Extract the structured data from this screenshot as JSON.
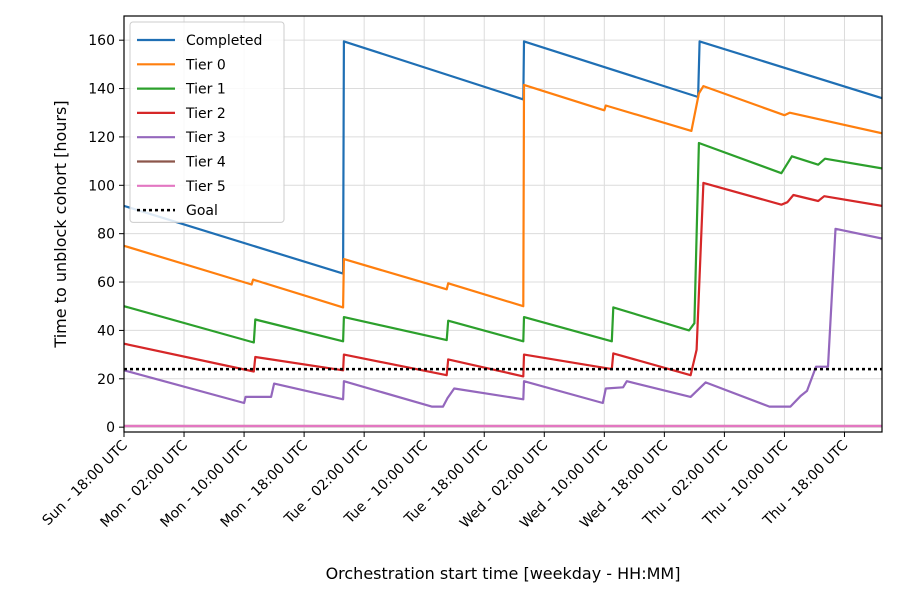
{
  "chart_data": {
    "type": "line",
    "xlabel": "Orchestration start time [weekday - HH:MM]",
    "ylabel": "Time to unblock cohort [hours]",
    "xlim": [
      0,
      101
    ],
    "ylim": [
      -2,
      170
    ],
    "grid": true,
    "legend_placement": "top-left",
    "x_unit": "hours after Sun - 18:00 UTC",
    "x_ticks": [
      {
        "x": 0,
        "label": "Sun - 18:00 UTC"
      },
      {
        "x": 8,
        "label": "Mon - 02:00 UTC"
      },
      {
        "x": 16,
        "label": "Mon - 10:00 UTC"
      },
      {
        "x": 24,
        "label": "Mon - 18:00 UTC"
      },
      {
        "x": 32,
        "label": "Tue - 02:00 UTC"
      },
      {
        "x": 40,
        "label": "Tue - 10:00 UTC"
      },
      {
        "x": 48,
        "label": "Tue - 18:00 UTC"
      },
      {
        "x": 56,
        "label": "Wed - 02:00 UTC"
      },
      {
        "x": 64,
        "label": "Wed - 10:00 UTC"
      },
      {
        "x": 72,
        "label": "Wed - 18:00 UTC"
      },
      {
        "x": 80,
        "label": "Thu - 02:00 UTC"
      },
      {
        "x": 88,
        "label": "Thu - 10:00 UTC"
      },
      {
        "x": 96,
        "label": "Thu - 18:00 UTC"
      }
    ],
    "y_ticks": [
      0,
      20,
      40,
      60,
      80,
      100,
      120,
      140,
      160
    ],
    "series": [
      {
        "name": "Completed",
        "color": "#1f6fb4",
        "points": [
          [
            0,
            91.5
          ],
          [
            29.2,
            63.5
          ],
          [
            29.3,
            159.5
          ],
          [
            53.2,
            135.5
          ],
          [
            53.3,
            159.5
          ],
          [
            76.5,
            136.5
          ],
          [
            76.7,
            159.5
          ],
          [
            101,
            136
          ]
        ]
      },
      {
        "name": "Tier 0",
        "color": "#ff7f0e",
        "points": [
          [
            0,
            75
          ],
          [
            17,
            59
          ],
          [
            17.2,
            61
          ],
          [
            29.2,
            49.5
          ],
          [
            29.3,
            69.5
          ],
          [
            43,
            57
          ],
          [
            43.2,
            59.5
          ],
          [
            53.2,
            50
          ],
          [
            53.3,
            141.5
          ],
          [
            64,
            131
          ],
          [
            64.2,
            133
          ],
          [
            75.6,
            122.5
          ],
          [
            76.6,
            138
          ],
          [
            77.2,
            141
          ],
          [
            88,
            129
          ],
          [
            88.7,
            130
          ],
          [
            101,
            121.5
          ]
        ]
      },
      {
        "name": "Tier 1",
        "color": "#2ca02c",
        "points": [
          [
            0,
            50
          ],
          [
            17.3,
            35
          ],
          [
            17.5,
            44.5
          ],
          [
            29.2,
            35.5
          ],
          [
            29.3,
            45.5
          ],
          [
            43,
            36
          ],
          [
            43.2,
            44
          ],
          [
            53.2,
            35.5
          ],
          [
            53.3,
            45.5
          ],
          [
            65,
            35.5
          ],
          [
            65.2,
            49.5
          ],
          [
            75.3,
            40
          ],
          [
            76,
            43
          ],
          [
            76.6,
            117.5
          ],
          [
            87.6,
            105
          ],
          [
            89,
            112
          ],
          [
            92.5,
            108.5
          ],
          [
            93.4,
            111
          ],
          [
            101,
            107
          ]
        ]
      },
      {
        "name": "Tier 2",
        "color": "#d62728",
        "points": [
          [
            0,
            34.5
          ],
          [
            17.3,
            23
          ],
          [
            17.5,
            29
          ],
          [
            29.2,
            23.5
          ],
          [
            29.3,
            30
          ],
          [
            43,
            21.5
          ],
          [
            43.2,
            28
          ],
          [
            53.2,
            21
          ],
          [
            53.3,
            30
          ],
          [
            65,
            24
          ],
          [
            65.2,
            30.5
          ],
          [
            75.5,
            21.5
          ],
          [
            76.3,
            32
          ],
          [
            77.2,
            101
          ],
          [
            87.6,
            92
          ],
          [
            88.4,
            93
          ],
          [
            89.2,
            96
          ],
          [
            92.5,
            93.5
          ],
          [
            93.3,
            95.5
          ],
          [
            101,
            91.5
          ]
        ]
      },
      {
        "name": "Tier 3",
        "color": "#9467bd",
        "points": [
          [
            0,
            23.5
          ],
          [
            16,
            10
          ],
          [
            16.2,
            12.5
          ],
          [
            19.6,
            12.5
          ],
          [
            20,
            18
          ],
          [
            29.2,
            11.5
          ],
          [
            29.3,
            19
          ],
          [
            41,
            8.5
          ],
          [
            42.5,
            8.5
          ],
          [
            43.1,
            12
          ],
          [
            44,
            16
          ],
          [
            53.2,
            11.5
          ],
          [
            53.3,
            19
          ],
          [
            63.8,
            10
          ],
          [
            64.2,
            16
          ],
          [
            66.5,
            16.5
          ],
          [
            67,
            19
          ],
          [
            75.5,
            12.5
          ],
          [
            77.5,
            18.5
          ],
          [
            86,
            8.5
          ],
          [
            88.8,
            8.5
          ],
          [
            90.2,
            13
          ],
          [
            91,
            15
          ],
          [
            92.2,
            25
          ],
          [
            93.8,
            25
          ],
          [
            94.8,
            82
          ],
          [
            101,
            78
          ]
        ]
      },
      {
        "name": "Tier 4",
        "color": "#8c564b",
        "points": [
          [
            0,
            0.5
          ],
          [
            101,
            0.5
          ]
        ]
      },
      {
        "name": "Tier 5",
        "color": "#e377c2",
        "points": [
          [
            0,
            0.5
          ],
          [
            101,
            0.5
          ]
        ]
      },
      {
        "name": "Goal",
        "color": "#000000",
        "dashed": true,
        "points": [
          [
            0,
            24
          ],
          [
            101,
            24
          ]
        ]
      }
    ]
  }
}
